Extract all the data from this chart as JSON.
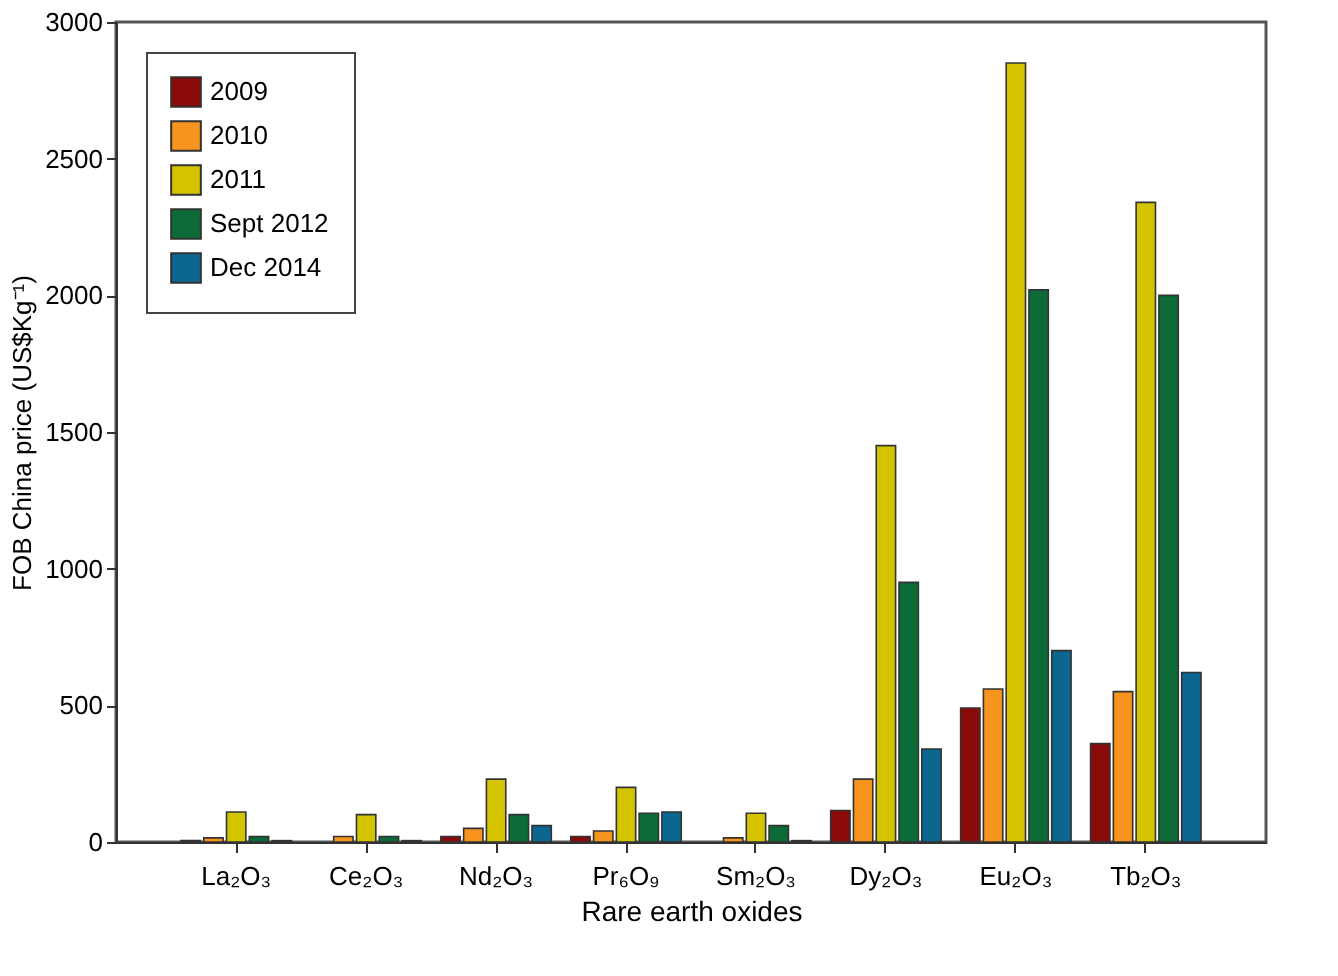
{
  "chart_data": {
    "type": "bar",
    "xlabel": "Rare earth oxides",
    "ylabel": "FOB China price (US$Kg⁻¹)",
    "categories": [
      "La₂O₃",
      "Ce₂O₃",
      "Nd₂O₃",
      "Pr₆O₉",
      "Sm₂O₃",
      "Dy₂O₃",
      "Eu₂O₃",
      "Tb₂O₃"
    ],
    "series": [
      {
        "name": "2009",
        "color": "#8b0a0a",
        "values": [
          5,
          null,
          20,
          20,
          null,
          115,
          490,
          360
        ]
      },
      {
        "name": "2010",
        "color": "#f7941d",
        "values": [
          15,
          20,
          50,
          40,
          15,
          230,
          560,
          550
        ]
      },
      {
        "name": "2011",
        "color": "#d4c400",
        "values": [
          110,
          100,
          230,
          200,
          105,
          1450,
          2850,
          2340
        ]
      },
      {
        "name": "Sept 2012",
        "color": "#0d6b38",
        "values": [
          20,
          20,
          100,
          105,
          60,
          950,
          2020,
          2000
        ]
      },
      {
        "name": "Dec 2014",
        "color": "#0b6690",
        "values": [
          5,
          5,
          60,
          110,
          5,
          340,
          700,
          620
        ]
      }
    ],
    "ylim": [
      0,
      3000
    ],
    "yticks": [
      0,
      500,
      1000,
      1500,
      2000,
      2500,
      3000
    ],
    "grid": false,
    "legend": "top left"
  }
}
